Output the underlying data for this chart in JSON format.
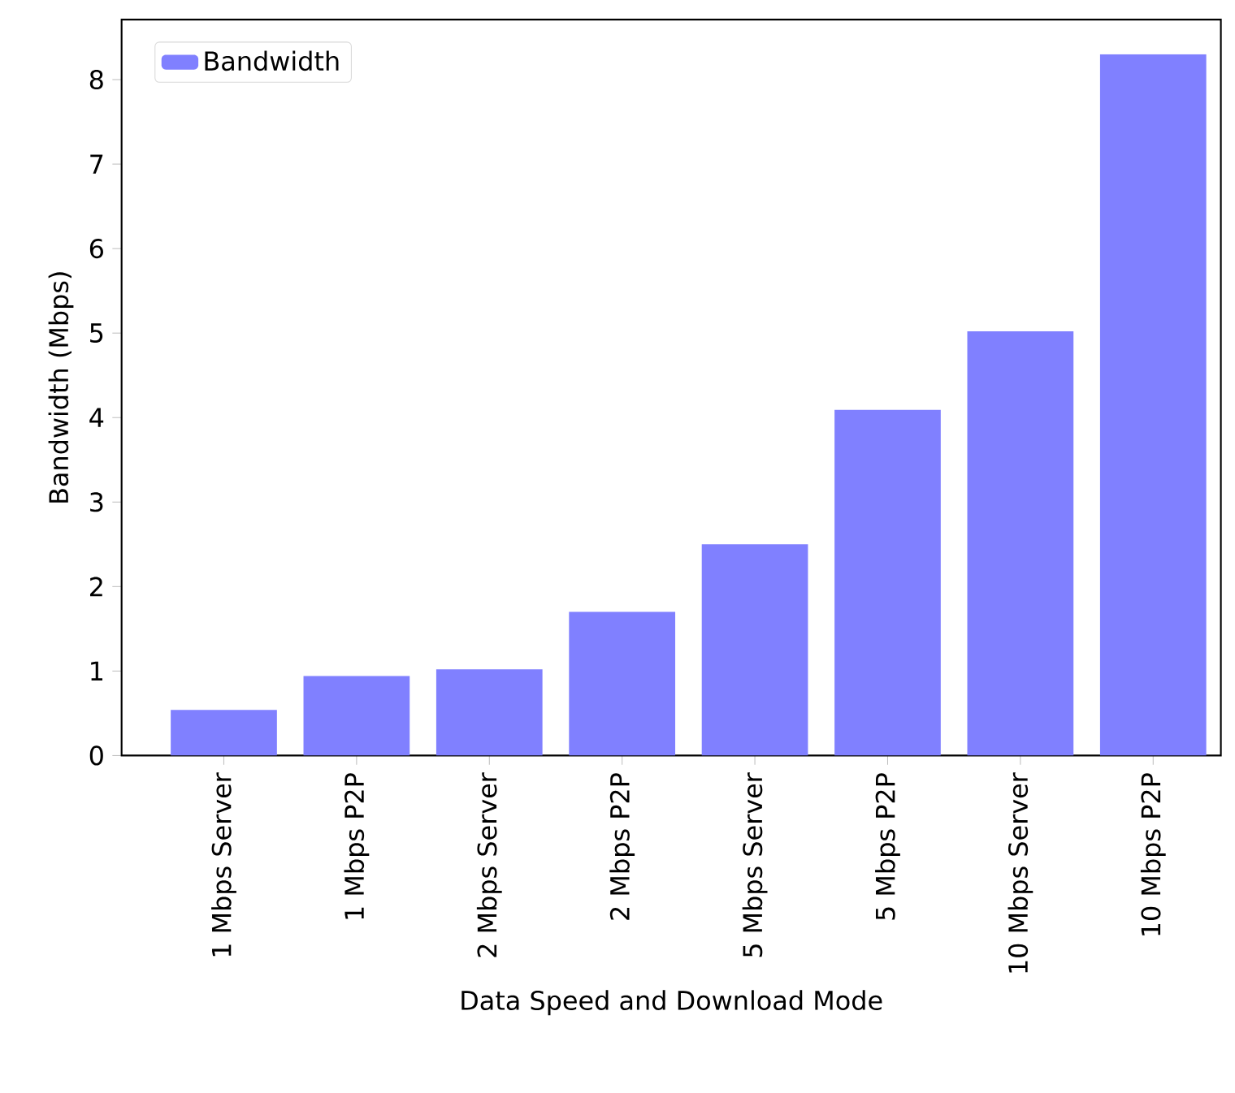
{
  "chart_data": {
    "type": "bar",
    "xlabel": "Data Speed and Download Mode",
    "ylabel": "Bandwidth (Mbps)",
    "categories": [
      "1 Mbps Server",
      "1 Mbps P2P",
      "2 Mbps Server",
      "2 Mbps P2P",
      "5 Mbps Server",
      "5 Mbps P2P",
      "10 Mbps Server",
      "10 Mbps P2P"
    ],
    "series": [
      {
        "name": "Bandwidth",
        "color": "#8080ff",
        "values": [
          0.54,
          0.94,
          1.02,
          1.7,
          2.5,
          4.09,
          5.02,
          8.3
        ]
      }
    ],
    "ylim": [
      0,
      8.71
    ],
    "yticks": [
      0,
      1,
      2,
      3,
      4,
      5,
      6,
      7,
      8
    ],
    "legend": "top left",
    "grid": false
  }
}
